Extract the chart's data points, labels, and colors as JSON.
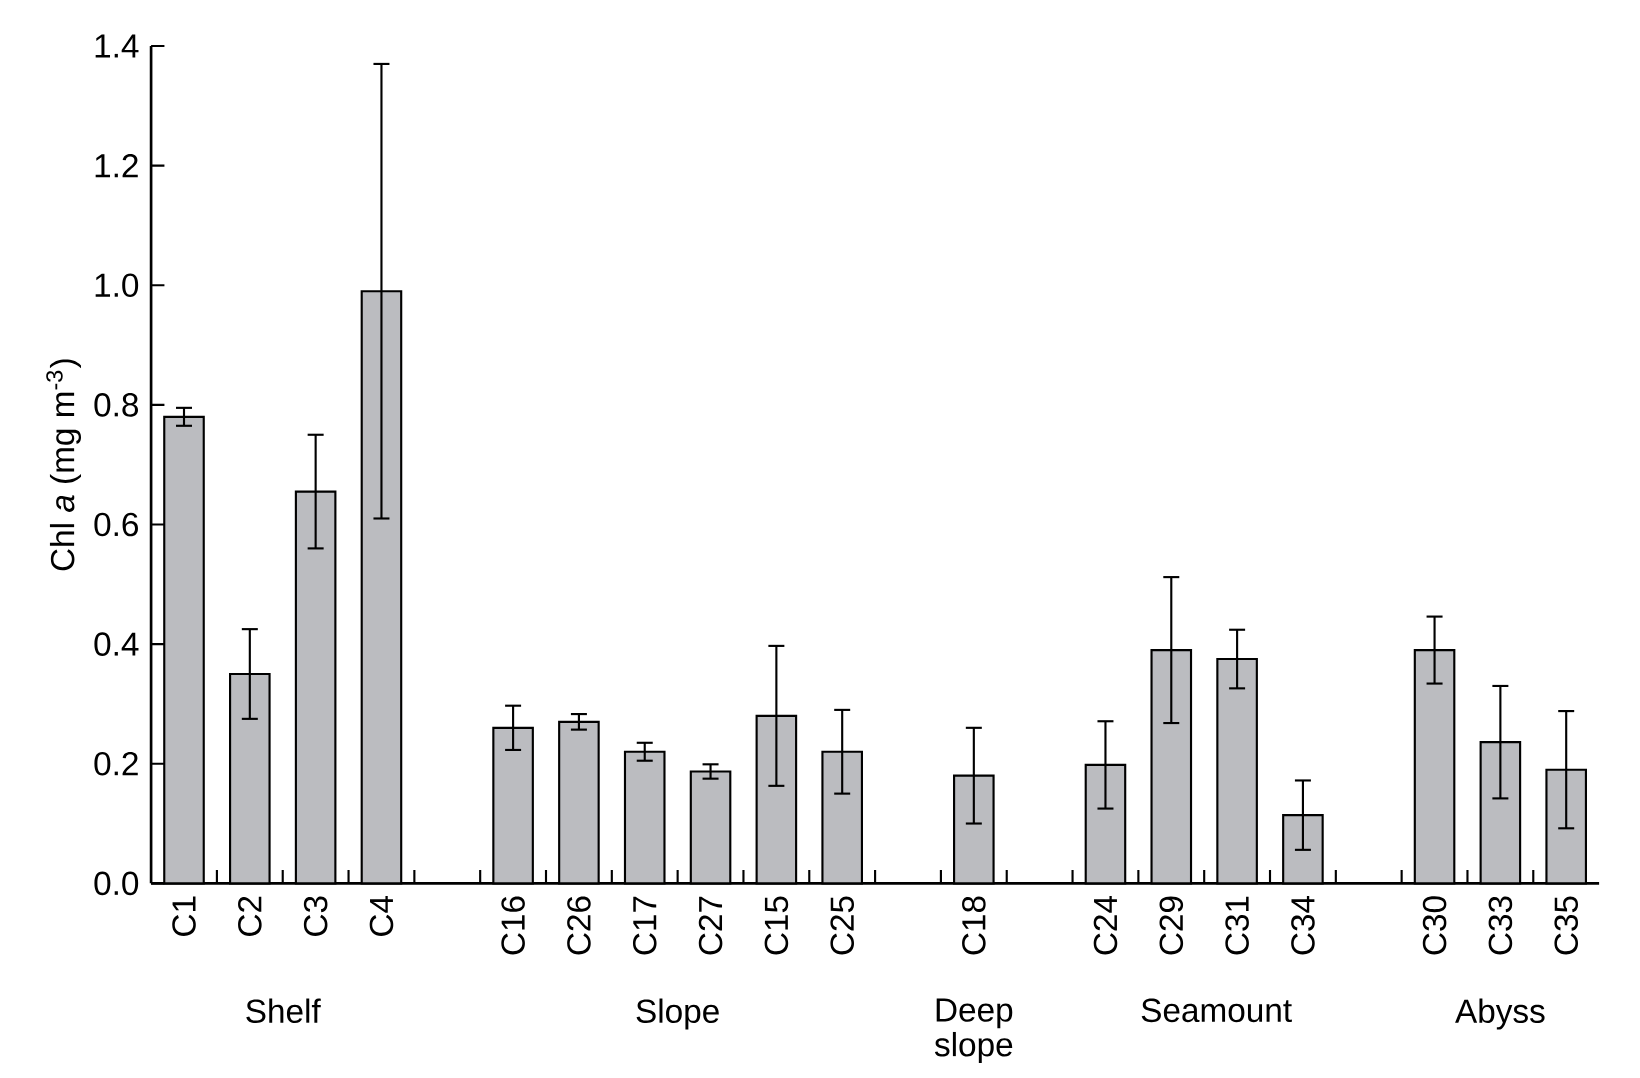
{
  "chart_data": {
    "type": "bar",
    "ylabel": "Chl *a* (mg m$^{-3}$)",
    "categories": [
      "C1",
      "C2",
      "C3",
      "C4",
      null,
      "C16",
      "C26",
      "C17",
      "C27",
      "C15",
      "C25",
      null,
      "C18",
      null,
      "C24",
      "C29",
      "C31",
      "C34",
      null,
      "C30",
      "C33",
      "C35"
    ],
    "values": [
      0.78,
      0.35,
      0.655,
      0.99,
      null,
      0.26,
      0.27,
      0.22,
      0.187,
      0.28,
      0.22,
      null,
      0.18,
      null,
      0.198,
      0.39,
      0.375,
      0.114,
      null,
      0.39,
      0.236,
      0.19
    ],
    "errors": [
      0.015,
      0.075,
      0.095,
      0.38,
      null,
      0.037,
      0.013,
      0.015,
      0.012,
      0.117,
      0.07,
      null,
      0.08,
      null,
      0.073,
      0.122,
      0.049,
      0.058,
      null,
      0.056,
      0.094,
      0.098
    ],
    "color": "#bbbcc0",
    "ylim": [
      0,
      1.4
    ],
    "yticks": [
      {
        "value": 0,
        "label": "0.0"
      },
      {
        "value": 0.2,
        "label": "0.2"
      },
      {
        "value": 0.4,
        "label": "0.4"
      },
      {
        "value": 0.6,
        "label": "0.6"
      },
      {
        "value": 0.8,
        "label": "0.8"
      },
      {
        "value": 1.0,
        "label": "1.0"
      },
      {
        "value": 1.2,
        "label": "1.2"
      },
      {
        "value": 1.4,
        "label": "1.4"
      }
    ],
    "annotations": [
      "Shelf",
      "Slope",
      "Deep slope",
      "Seamount",
      "Abyss"
    ]
  }
}
